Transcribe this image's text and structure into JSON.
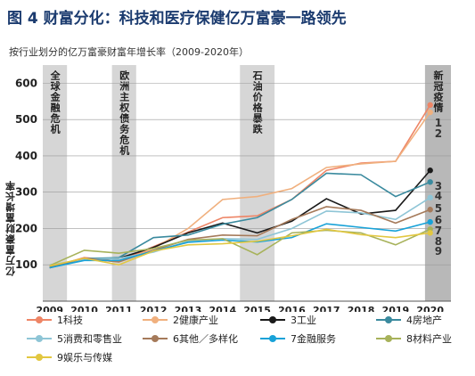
{
  "title": "图 4 财富分化：科技和医疗保健亿万富豪一路领先",
  "subtitle": "按行业划分的亿万富豪财富年增长率（2009-2020年）",
  "chart_data": {
    "type": "line",
    "title": "图 4 财富分化：科技和医疗保健亿万富豪一路领先",
    "subtitle": "按行业划分的亿万富豪财富年增长率（2009-2020年）",
    "ylabel": "亿万富豪财富增长率",
    "xlabel": "",
    "x": [
      2009,
      2010,
      2011,
      2012,
      2013,
      2014,
      2015,
      2016,
      2017,
      2018,
      2019,
      2020
    ],
    "ylim": [
      0,
      650
    ],
    "yticks": [
      100,
      200,
      300,
      400,
      500,
      600
    ],
    "grid": true,
    "legend": "bottom",
    "bands": [
      {
        "from": 2008.8,
        "to": 2009.5,
        "label": "全球金融危机"
      },
      {
        "from": 2010.8,
        "to": 2011.5,
        "label": "欧洲主权债务危机"
      },
      {
        "from": 2014.5,
        "to": 2015.5,
        "label": "石油价格暴跌"
      },
      {
        "from": 2019.85,
        "to": 2020.6,
        "label": "新冠疫情"
      }
    ],
    "series": [
      {
        "name": "1科技",
        "end_label": "1",
        "color": "#ee8566",
        "values": [
          93,
          120,
          110,
          150,
          190,
          230,
          235,
          280,
          360,
          380,
          385,
          540
        ]
      },
      {
        "name": "2健康产业",
        "end_label": "2",
        "color": "#f0b07e",
        "values": [
          95,
          118,
          108,
          145,
          200,
          280,
          288,
          310,
          368,
          378,
          385,
          520
        ]
      },
      {
        "name": "3工业",
        "end_label": "3",
        "color": "#1a1a1a",
        "values": [
          92,
          115,
          118,
          148,
          188,
          215,
          188,
          220,
          282,
          240,
          250,
          360
        ]
      },
      {
        "name": "4房地产",
        "end_label": "4",
        "color": "#3a8a9e",
        "values": [
          92,
          117,
          120,
          175,
          182,
          212,
          230,
          280,
          352,
          348,
          288,
          328
        ]
      },
      {
        "name": "5消费和零售业",
        "end_label": "5",
        "color": "#8ec5d6",
        "values": [
          100,
          115,
          118,
          135,
          165,
          172,
          170,
          200,
          248,
          243,
          225,
          285
        ]
      },
      {
        "name": "6其他／多样化",
        "end_label": "6",
        "color": "#a57a5a",
        "values": [
          95,
          118,
          108,
          140,
          170,
          182,
          180,
          225,
          260,
          250,
          215,
          252
        ]
      },
      {
        "name": "7金融服务",
        "end_label": "7",
        "color": "#18a2d8",
        "values": [
          92,
          112,
          112,
          138,
          162,
          168,
          163,
          175,
          213,
          203,
          193,
          218
        ]
      },
      {
        "name": "8材料产业",
        "end_label": "8",
        "color": "#a7b25a",
        "values": [
          98,
          140,
          132,
          145,
          168,
          172,
          128,
          188,
          195,
          188,
          155,
          198
        ]
      },
      {
        "name": "9娱乐与传媒",
        "end_label": "9",
        "color": "#e2c740",
        "values": [
          97,
          118,
          100,
          138,
          155,
          158,
          165,
          180,
          198,
          183,
          175,
          188
        ]
      }
    ]
  }
}
